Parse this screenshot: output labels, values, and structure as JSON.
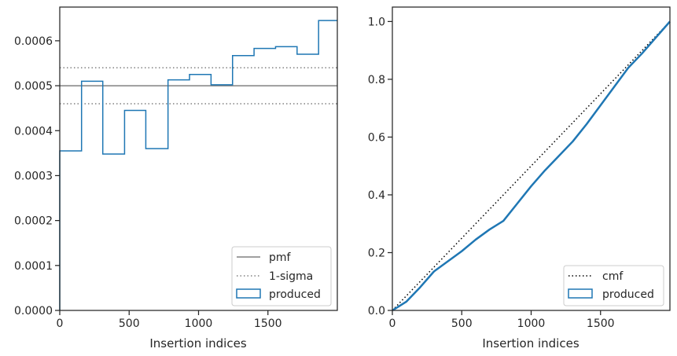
{
  "chart_data": [
    {
      "type": "line",
      "subtype": "step-histogram",
      "xlabel": "Insertion indices",
      "ylabel": "",
      "xlim": [
        0,
        2000
      ],
      "ylim": [
        0,
        0.000675
      ],
      "xticks": [
        0,
        500,
        1000,
        1500
      ],
      "xtick_labels": [
        "0",
        "500",
        "1000",
        "1500"
      ],
      "yticks": [
        0,
        0.0001,
        0.0002,
        0.0003,
        0.0004,
        0.0005,
        0.0006
      ],
      "ytick_labels": [
        "0.0000",
        "0.0001",
        "0.0002",
        "0.0003",
        "0.0004",
        "0.0005",
        "0.0006"
      ],
      "grid": false,
      "legend_position": "lower-right",
      "pmf": 0.0005,
      "sigma_band": [
        0.00046,
        0.00054
      ],
      "bin_edges": [
        0,
        157,
        310,
        467,
        620,
        780,
        935,
        1090,
        1245,
        1400,
        1555,
        1710,
        1865,
        2000
      ],
      "produced": [
        0.000355,
        0.00051,
        0.000348,
        0.000445,
        0.00036,
        0.000513,
        0.000525,
        0.000502,
        0.000567,
        0.000583,
        0.000587,
        0.00057,
        0.000645
      ],
      "legend": [
        {
          "label": "pmf",
          "style": "solid",
          "color": "#808080"
        },
        {
          "label": "1-sigma",
          "style": "dotted",
          "color": "#808080"
        },
        {
          "label": "produced",
          "style": "patch",
          "color": "#1f77b4"
        }
      ]
    },
    {
      "type": "line",
      "xlabel": "Insertion indices",
      "ylabel": "",
      "xlim": [
        0,
        2000
      ],
      "ylim": [
        0,
        1.05
      ],
      "xticks": [
        0,
        500,
        1000,
        1500
      ],
      "xtick_labels": [
        "0",
        "500",
        "1000",
        "1500"
      ],
      "yticks": [
        0,
        0.2,
        0.4,
        0.6,
        0.8,
        1.0
      ],
      "ytick_labels": [
        "0.0",
        "0.2",
        "0.4",
        "0.6",
        "0.8",
        "1.0"
      ],
      "grid": false,
      "legend_position": "lower-right",
      "cmf": {
        "x": [
          0,
          2000
        ],
        "y": [
          0,
          1.0
        ]
      },
      "produced": {
        "x": [
          0,
          100,
          200,
          300,
          400,
          500,
          600,
          700,
          800,
          900,
          1000,
          1100,
          1200,
          1300,
          1400,
          1500,
          1600,
          1700,
          1800,
          1900,
          2000
        ],
        "y": [
          0,
          0.03,
          0.08,
          0.135,
          0.17,
          0.205,
          0.245,
          0.28,
          0.31,
          0.37,
          0.43,
          0.485,
          0.535,
          0.585,
          0.645,
          0.71,
          0.775,
          0.84,
          0.89,
          0.945,
          1.0
        ]
      },
      "legend": [
        {
          "label": "cmf",
          "style": "dotted",
          "color": "#000000"
        },
        {
          "label": "produced",
          "style": "patch",
          "color": "#1f77b4"
        }
      ]
    }
  ]
}
